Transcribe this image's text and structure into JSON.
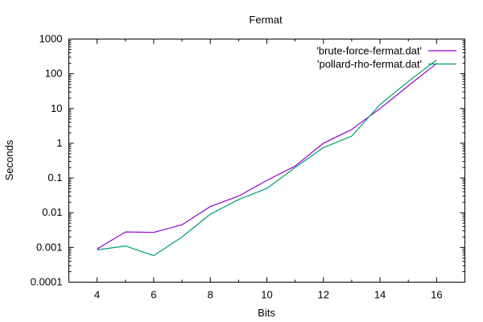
{
  "chart_data": {
    "type": "line",
    "title": "Fermat",
    "xlabel": "Bits",
    "ylabel": "Seconds",
    "xlim": [
      3,
      17
    ],
    "ylim": [
      0.0001,
      1000
    ],
    "yscale": "log",
    "grid": false,
    "legend_position": "top-right",
    "x_ticks": [
      4,
      6,
      8,
      10,
      12,
      14,
      16
    ],
    "x_tick_labels": [
      "4",
      "6",
      "8",
      "10",
      "12",
      "14",
      "16"
    ],
    "y_ticks": [
      0.0001,
      0.001,
      0.01,
      0.1,
      1,
      10,
      100,
      1000
    ],
    "y_tick_labels": [
      "0.0001",
      "0.001",
      "0.01",
      "0.1",
      "1",
      "10",
      "100",
      "1000"
    ],
    "series": [
      {
        "name": "'brute-force-fermat.dat'",
        "color": "#9400d3",
        "x": [
          4,
          5,
          6,
          7,
          8,
          9,
          10,
          11,
          12,
          13,
          14,
          15,
          16
        ],
        "y": [
          0.0009,
          0.0028,
          0.0027,
          0.0045,
          0.015,
          0.03,
          0.085,
          0.22,
          1.0,
          2.5,
          10,
          45,
          200
        ]
      },
      {
        "name": "'pollard-rho-fermat.dat'",
        "color": "#009e73",
        "x": [
          4,
          5,
          6,
          7,
          8,
          9,
          10,
          11,
          12,
          13,
          14,
          15,
          16
        ],
        "y": [
          0.00085,
          0.0011,
          0.00058,
          0.002,
          0.009,
          0.024,
          0.05,
          0.2,
          0.75,
          1.6,
          13,
          60,
          250
        ]
      }
    ]
  }
}
